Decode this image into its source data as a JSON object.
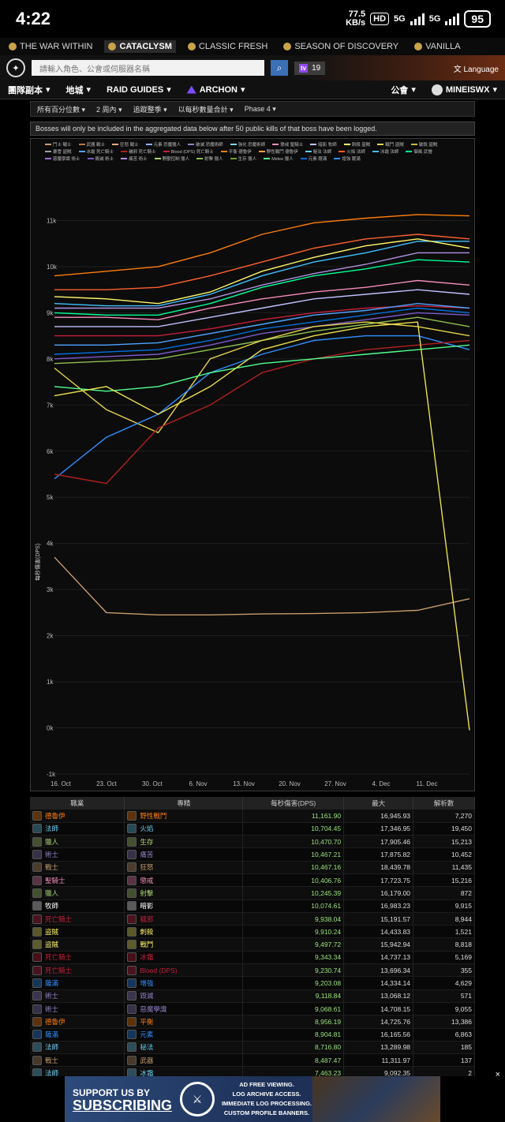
{
  "status": {
    "time": "4:22",
    "netspeed_top": "77.5",
    "netspeed_bottom": "KB/s",
    "hd": "HD",
    "net1": "5G",
    "net2": "5G",
    "battery": "95"
  },
  "versions": [
    {
      "label": "THE WAR WITHIN",
      "active": false
    },
    {
      "label": "CATACLYSM",
      "active": true
    },
    {
      "label": "CLASSIC FRESH",
      "active": false
    },
    {
      "label": "SEASON OF DISCOVERY",
      "active": false
    },
    {
      "label": "VANILLA",
      "active": false
    }
  ],
  "search": {
    "placeholder": "請輸入角色、公會或伺服器名稱",
    "twitch_count": "19",
    "language": "Language"
  },
  "nav": {
    "raids": "團隊副本",
    "zones": "地城",
    "guides": "RAID GUIDES",
    "archon": "ARCHON",
    "guilds": "公會",
    "user": "MINEISWX"
  },
  "filters": [
    "所有百分位數",
    "2 周內",
    "追蹤整季",
    "以每秒數量合計",
    "Phase 4"
  ],
  "notice": "Bosses will only be included in the aggregated data below after 50 public kills of that boss have been logged.",
  "legend": [
    {
      "name": "鬥士 戰士",
      "color": "#c79c6e"
    },
    {
      "name": "武器 戰士",
      "color": "#b07a4a"
    },
    {
      "name": "狂怒 戰士",
      "color": "#e0b080"
    },
    {
      "name": "元素 恐魔獵人",
      "color": "#8fb0ff"
    },
    {
      "name": "破滅 恐魔術師",
      "color": "#9482c9"
    },
    {
      "name": "強化 恐魔術師",
      "color": "#7fd3ff"
    },
    {
      "name": "懲戒 聖騎士",
      "color": "#f58cba"
    },
    {
      "name": "暗影 牧師",
      "color": "#c0c0ff"
    },
    {
      "name": "刺殺 盜賊",
      "color": "#fff569"
    },
    {
      "name": "戰鬥 盜賊",
      "color": "#e6d24a"
    },
    {
      "name": "敏銳 盜賊",
      "color": "#c9b830"
    },
    {
      "name": "暴雪 盜賊",
      "color": "#a0a0a0"
    },
    {
      "name": "冰霜 死亡騎士",
      "color": "#4fa3ff"
    },
    {
      "name": "穢邪 死亡騎士",
      "color": "#b02020"
    },
    {
      "name": "Blood (DPS) 死亡騎士",
      "color": "#c41f3b"
    },
    {
      "name": "平衡 德魯伊",
      "color": "#ff7d0a"
    },
    {
      "name": "野性戰鬥 德魯伊",
      "color": "#ffa040"
    },
    {
      "name": "秘法 法師",
      "color": "#69ccf0"
    },
    {
      "name": "火焰 法師",
      "color": "#ff6030"
    },
    {
      "name": "冰霜 法師",
      "color": "#40c0ff"
    },
    {
      "name": "御風 武僧",
      "color": "#00ff96"
    },
    {
      "name": "惡魔學識 術士",
      "color": "#9b6fd6"
    },
    {
      "name": "毀滅 術士",
      "color": "#7a5acb"
    },
    {
      "name": "痛苦 術士",
      "color": "#b090e0"
    },
    {
      "name": "野獸控制 獵人",
      "color": "#abd473"
    },
    {
      "name": "射擊 獵人",
      "color": "#8fbf50"
    },
    {
      "name": "生存 獵人",
      "color": "#6f9f30"
    },
    {
      "name": "Melee 獵人",
      "color": "#50ff90"
    },
    {
      "name": "元素 薩滿",
      "color": "#0070de"
    },
    {
      "name": "增強 薩滿",
      "color": "#2f8fff"
    }
  ],
  "chart_data": {
    "type": "line",
    "ylabel": "每秒傷害(DPS)",
    "y_ticks": [
      "11k",
      "10k",
      "9k",
      "8k",
      "7k",
      "6k",
      "5k",
      "4k",
      "3k",
      "2k",
      "1k",
      "0k",
      "-1k"
    ],
    "ylim": [
      -1000,
      12000
    ],
    "x_ticks": [
      "16. Oct",
      "23. Oct",
      "30. Oct",
      "6. Nov",
      "13. Nov",
      "20. Nov",
      "27. Nov",
      "4. Dec",
      "11. Dec"
    ],
    "series": [
      {
        "name": "平衡 德魯伊",
        "color": "#ff7d0a",
        "values": [
          9800,
          9900,
          10000,
          10300,
          10700,
          10950,
          11050,
          11130,
          11100
        ]
      },
      {
        "name": "火焰 法師",
        "color": "#ff6030",
        "values": [
          9500,
          9500,
          9550,
          9800,
          10100,
          10400,
          10600,
          10700,
          10600
        ]
      },
      {
        "name": "冰霜 法師",
        "color": "#40c0ff",
        "values": [
          9200,
          9150,
          9150,
          9400,
          9800,
          10100,
          10300,
          10550,
          10550
        ]
      },
      {
        "name": "刺殺 盜賊",
        "color": "#fff569",
        "values": [
          9350,
          9300,
          9200,
          9450,
          9900,
          10200,
          10450,
          10600,
          10400
        ]
      },
      {
        "name": "痛苦 術士",
        "color": "#b090e0",
        "values": [
          9100,
          9100,
          9100,
          9300,
          9600,
          9850,
          10050,
          10300,
          10300
        ]
      },
      {
        "name": "御風 武僧",
        "color": "#00ff96",
        "values": [
          9000,
          8950,
          8950,
          9200,
          9550,
          9800,
          9950,
          10150,
          10100
        ]
      },
      {
        "name": "懲戒 聖騎士",
        "color": "#f58cba",
        "values": [
          8900,
          8900,
          8850,
          9100,
          9300,
          9450,
          9550,
          9700,
          9600
        ]
      },
      {
        "name": "暗影 牧師",
        "color": "#c0c0ff",
        "values": [
          8700,
          8700,
          8700,
          8900,
          9100,
          9300,
          9400,
          9500,
          9400
        ]
      },
      {
        "name": "Blood (DPS) 死亡騎士",
        "color": "#c41f3b",
        "values": [
          8500,
          8500,
          8500,
          8650,
          8850,
          9000,
          9100,
          9150,
          9100
        ]
      },
      {
        "name": "冰霜 死亡騎士",
        "color": "#4fa3ff",
        "values": [
          8300,
          8300,
          8350,
          8550,
          8750,
          8950,
          9050,
          9200,
          9100
        ]
      },
      {
        "name": "元素 薩滿",
        "color": "#0070de",
        "values": [
          8100,
          8150,
          8200,
          8400,
          8650,
          8800,
          8950,
          9100,
          9000
        ]
      },
      {
        "name": "毀滅 術士",
        "color": "#7a5acb",
        "values": [
          8000,
          8050,
          8100,
          8300,
          8550,
          8700,
          8850,
          9000,
          8950
        ]
      },
      {
        "name": "射擊 獵人",
        "color": "#8fbf50",
        "values": [
          7900,
          7950,
          8000,
          8200,
          8400,
          8600,
          8750,
          8900,
          8700
        ]
      },
      {
        "name": "戰鬥 盜賊",
        "color": "#e6d24a",
        "values": [
          7800,
          6900,
          6400,
          8000,
          8400,
          8700,
          8800,
          8700,
          8500
        ]
      },
      {
        "name": "增強 薩滿",
        "color": "#2f8fff",
        "values": [
          5400,
          6300,
          6800,
          7700,
          8100,
          8400,
          8500,
          8500,
          8200
        ]
      },
      {
        "name": "穢邪 死亡騎士",
        "color": "#b02020",
        "values": [
          5500,
          5300,
          6500,
          7000,
          7700,
          8000,
          8200,
          8300,
          8400
        ]
      },
      {
        "name": "Melee 獵人",
        "color": "#50ff90",
        "values": [
          7400,
          7300,
          7400,
          7700,
          7900,
          8000,
          8100,
          8200,
          8300
        ]
      },
      {
        "name": "鬥士 戰士",
        "color": "#c79c6e",
        "values": [
          3700,
          2500,
          2450,
          2450,
          2470,
          2480,
          2500,
          2550,
          2800
        ]
      }
    ],
    "drop_series": {
      "name": "敏銳 盜賊",
      "color": "#e8e050",
      "values": [
        7200,
        7400,
        6800,
        7400,
        8200,
        8500,
        8700,
        8800,
        -50
      ]
    }
  },
  "table": {
    "headers": [
      "職業",
      "專精",
      "每秒傷害(DPS)",
      "最大",
      "解析數"
    ],
    "rows": [
      {
        "cls": "德魯伊",
        "spec": "野性戰鬥",
        "dps": "11,161.90",
        "max": "16,945.93",
        "parses": "7,270",
        "cc": "#ff7d0a",
        "sc": "#ff7d0a"
      },
      {
        "cls": "法師",
        "spec": "火焰",
        "dps": "10,704.45",
        "max": "17,346.95",
        "parses": "19,450",
        "cc": "#69ccf0",
        "sc": "#69ccf0"
      },
      {
        "cls": "獵人",
        "spec": "生存",
        "dps": "10,470.70",
        "max": "17,905.46",
        "parses": "15,213",
        "cc": "#abd473",
        "sc": "#abd473"
      },
      {
        "cls": "術士",
        "spec": "痛苦",
        "dps": "10,467.21",
        "max": "17,875.82",
        "parses": "10,452",
        "cc": "#9482c9",
        "sc": "#9482c9"
      },
      {
        "cls": "戰士",
        "spec": "狂怒",
        "dps": "10,467.16",
        "max": "18,439.78",
        "parses": "11,435",
        "cc": "#c79c6e",
        "sc": "#c79c6e"
      },
      {
        "cls": "聖騎士",
        "spec": "懲戒",
        "dps": "10,406.76",
        "max": "17,723.75",
        "parses": "15,216",
        "cc": "#f58cba",
        "sc": "#f58cba"
      },
      {
        "cls": "獵人",
        "spec": "射擊",
        "dps": "10,245.39",
        "max": "16,179.00",
        "parses": "872",
        "cc": "#abd473",
        "sc": "#abd473"
      },
      {
        "cls": "牧師",
        "spec": "暗影",
        "dps": "10,074.61",
        "max": "16,983.23",
        "parses": "9,915",
        "cc": "#ffffff",
        "sc": "#ffffff"
      },
      {
        "cls": "死亡騎士",
        "spec": "穢邪",
        "dps": "9,938.04",
        "max": "15,191.57",
        "parses": "8,944",
        "cc": "#c41f3b",
        "sc": "#c41f3b"
      },
      {
        "cls": "盜賊",
        "spec": "刺殺",
        "dps": "9,910.24",
        "max": "14,433.83",
        "parses": "1,521",
        "cc": "#fff569",
        "sc": "#fff569"
      },
      {
        "cls": "盜賊",
        "spec": "戰鬥",
        "dps": "9,497.72",
        "max": "15,942.94",
        "parses": "8,818",
        "cc": "#fff569",
        "sc": "#fff569"
      },
      {
        "cls": "死亡騎士",
        "spec": "冰霜",
        "dps": "9,343.34",
        "max": "14,737.13",
        "parses": "5,169",
        "cc": "#c41f3b",
        "sc": "#c41f3b"
      },
      {
        "cls": "死亡騎士",
        "spec": "Blood (DPS)",
        "dps": "9,230.74",
        "max": "13,696.34",
        "parses": "355",
        "cc": "#c41f3b",
        "sc": "#c41f3b"
      },
      {
        "cls": "薩滿",
        "spec": "增強",
        "dps": "9,203.08",
        "max": "14,334.14",
        "parses": "4,629",
        "cc": "#2f8fff",
        "sc": "#2f8fff"
      },
      {
        "cls": "術士",
        "spec": "毀滅",
        "dps": "9,118.84",
        "max": "13,068.12",
        "parses": "571",
        "cc": "#9482c9",
        "sc": "#9482c9"
      },
      {
        "cls": "術士",
        "spec": "惡魔學識",
        "dps": "9,068.61",
        "max": "14,708.15",
        "parses": "9,055",
        "cc": "#9482c9",
        "sc": "#9482c9"
      },
      {
        "cls": "德魯伊",
        "spec": "平衡",
        "dps": "8,956.19",
        "max": "14,725.76",
        "parses": "13,386",
        "cc": "#ff7d0a",
        "sc": "#ff7d0a"
      },
      {
        "cls": "薩滿",
        "spec": "元素",
        "dps": "8,904.81",
        "max": "16,165.56",
        "parses": "6,863",
        "cc": "#2f8fff",
        "sc": "#2f8fff"
      },
      {
        "cls": "法師",
        "spec": "秘法",
        "dps": "8,716.80",
        "max": "13,289.98",
        "parses": "185",
        "cc": "#69ccf0",
        "sc": "#69ccf0"
      },
      {
        "cls": "戰士",
        "spec": "武器",
        "dps": "8,487.47",
        "max": "11,311.97",
        "parses": "137",
        "cc": "#c79c6e",
        "sc": "#c79c6e"
      },
      {
        "cls": "法師",
        "spec": "冰霜",
        "dps": "7,463.23",
        "max": "9,092.35",
        "parses": "2",
        "cc": "#69ccf0",
        "sc": "#69ccf0"
      }
    ]
  },
  "ad": {
    "line1": "SUPPORT US BY",
    "line2": "SUBSCRIBING",
    "right1": "AD FREE VIEWING.",
    "right2": "LOG ARCHIVE ACCESS.",
    "right3": "IMMEDIATE LOG PROCESSING.",
    "right4": "CUSTOM PROFILE BANNERS.",
    "close": "×"
  }
}
